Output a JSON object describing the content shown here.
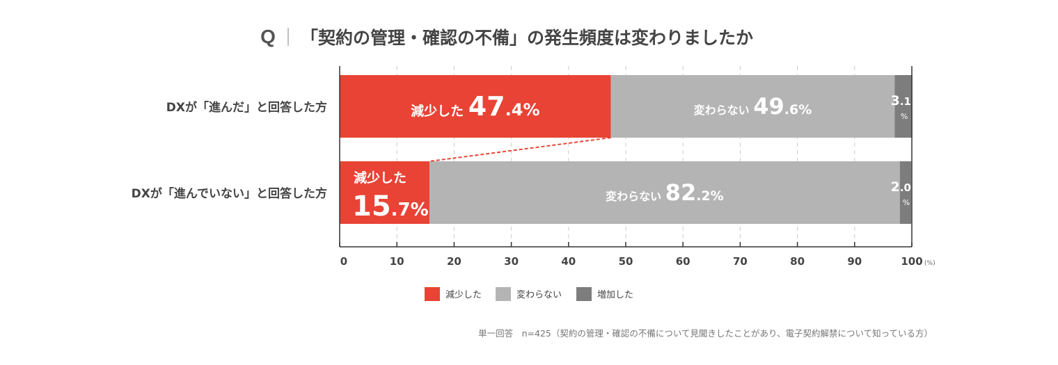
{
  "header": {
    "q_mark": "Q",
    "title": "「契約の管理・確認の不備」の発生頻度は変わりましたか"
  },
  "chart_data": {
    "type": "bar",
    "stacked": true,
    "orientation": "horizontal",
    "categories": [
      "DXが「進んだ」と回答した方",
      "DXが「進んでいない」と回答した方"
    ],
    "series": [
      {
        "name": "減少した",
        "values": [
          47.4,
          15.7
        ],
        "color": "#e84335"
      },
      {
        "name": "変わらない",
        "values": [
          49.6,
          82.2
        ],
        "color": "#b4b4b4"
      },
      {
        "name": "増加した",
        "values": [
          3.1,
          2.0
        ],
        "color": "#7d7d7d"
      }
    ],
    "x_ticks": [
      "0",
      "10",
      "20",
      "30",
      "40",
      "50",
      "60",
      "70",
      "80",
      "90",
      "100"
    ],
    "x_unit": "(%)",
    "xlim": [
      0,
      100
    ],
    "grid": true,
    "legend_position": "bottom",
    "percent_sign": "%"
  },
  "footnote": "単一回答　n=425（契約の管理・確認の不備について見聞きしたことがあり、電子契約解禁について知っている方）"
}
